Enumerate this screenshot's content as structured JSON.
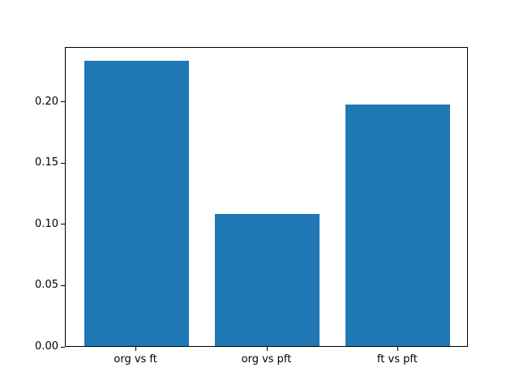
{
  "figure": {
    "background": "#ffffff",
    "spine_color": "#000000",
    "tick_color": "#000000",
    "text_color": "#000000"
  },
  "chart_data": {
    "type": "bar",
    "title": "",
    "xlabel": "",
    "ylabel": "",
    "categories": [
      "org vs ft",
      "org vs pft",
      "ft vs pft"
    ],
    "values": [
      0.233,
      0.108,
      0.197
    ],
    "bar_color": "#1f77b4",
    "bar_width_fraction": 0.8,
    "xlim": [
      -0.54,
      2.54
    ],
    "ylim": [
      0,
      0.2447
    ],
    "yticks": [
      {
        "value": 0.0,
        "label": "0.00"
      },
      {
        "value": 0.05,
        "label": "0.05"
      },
      {
        "value": 0.1,
        "label": "0.10"
      },
      {
        "value": 0.15,
        "label": "0.15"
      },
      {
        "value": 0.2,
        "label": "0.20"
      }
    ],
    "grid": false,
    "legend": null
  }
}
